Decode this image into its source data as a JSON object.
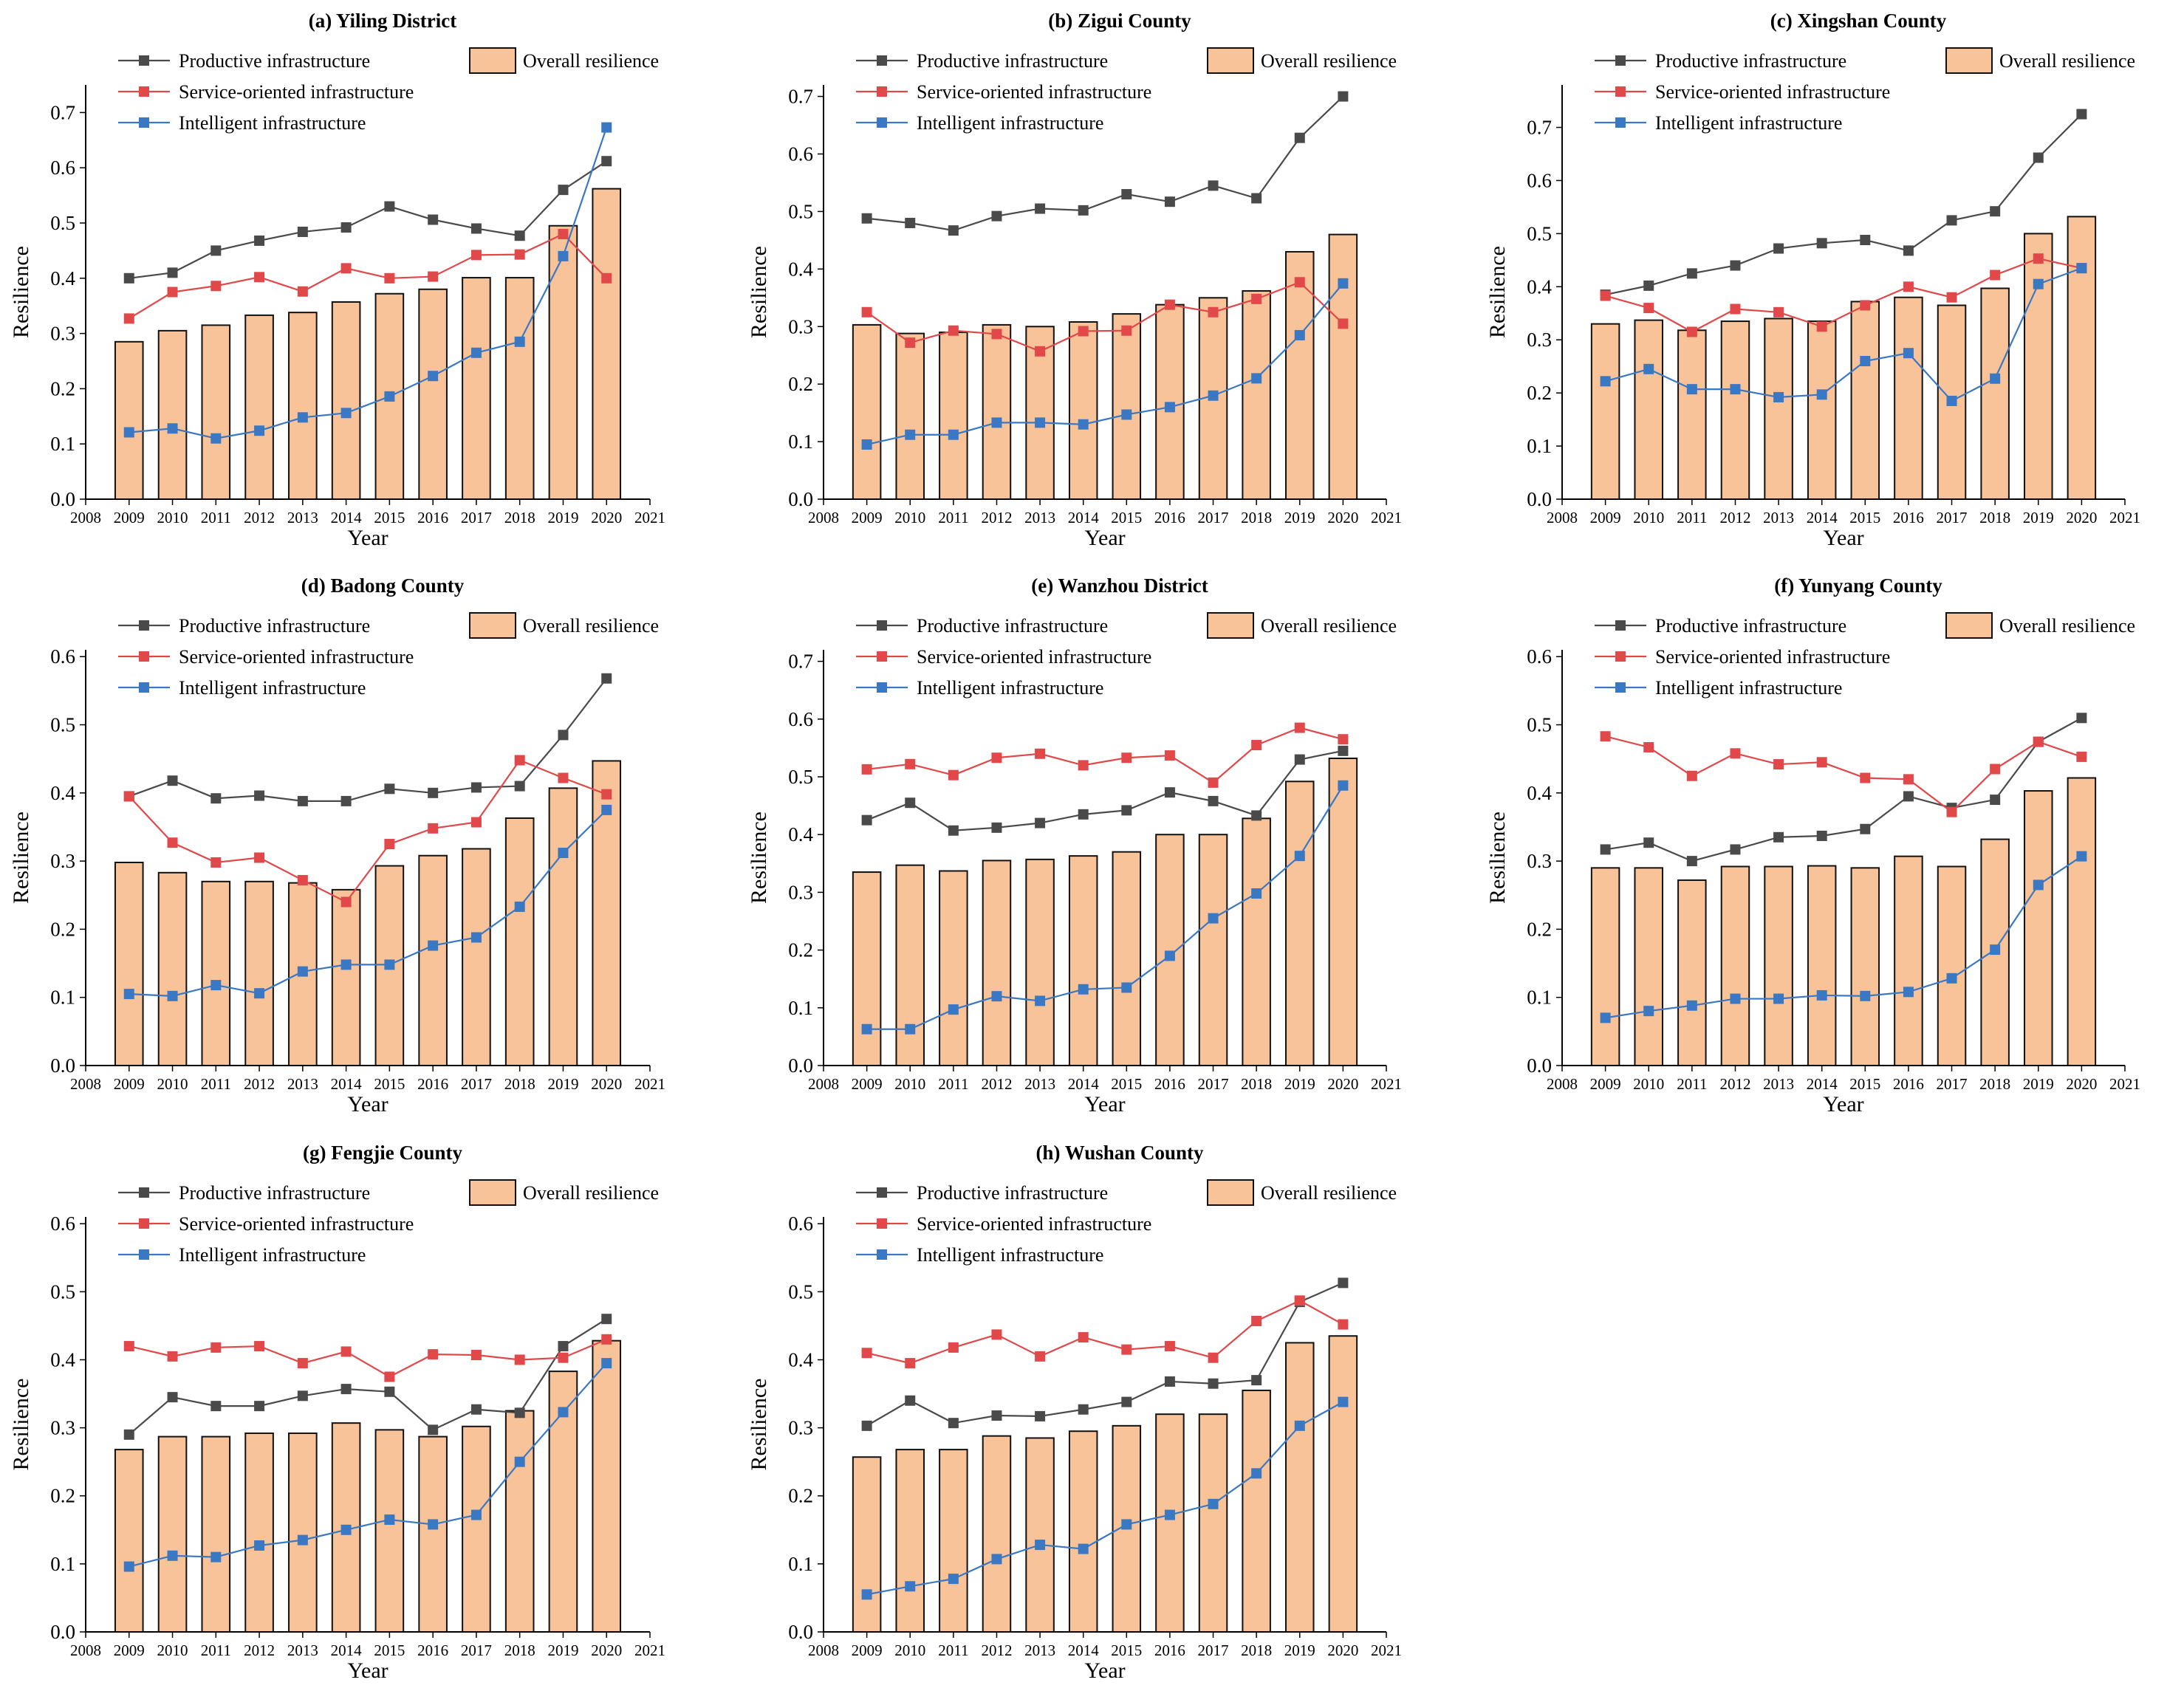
{
  "figure": {
    "series_names": [
      "Productive infrastructure",
      "Service-oriented infrastructure",
      "Intelligent infrastructure"
    ],
    "bar_name": "Overall resilience",
    "colors": {
      "productive": "#4a4a4a",
      "service": "#e0484a",
      "intelligent": "#3a78c4",
      "bar_fill": "#f9c39a",
      "bar_edge": "#111111"
    }
  },
  "chart_data": [
    {
      "type": "bar",
      "title": "(a) Yiling District",
      "xlabel": "Year",
      "ylabel": "Resilience",
      "x_ticks": [
        "2008",
        "2009",
        "2010",
        "2011",
        "2012",
        "2013",
        "2014",
        "2015",
        "2016",
        "2017",
        "2018",
        "2019",
        "2020",
        "2021"
      ],
      "y_ticks": [
        "0.0",
        "0.1",
        "0.2",
        "0.3",
        "0.4",
        "0.5",
        "0.6",
        "0.7"
      ],
      "categories": [
        2009,
        2010,
        2011,
        2012,
        2013,
        2014,
        2015,
        2016,
        2017,
        2018,
        2019,
        2020
      ],
      "xlim": [
        2008,
        2021
      ],
      "ylim": [
        0,
        0.75
      ],
      "legend": "top-left",
      "series": [
        {
          "name": "Overall resilience",
          "kind": "bar",
          "values": [
            0.285,
            0.305,
            0.315,
            0.333,
            0.338,
            0.357,
            0.372,
            0.38,
            0.401,
            0.401,
            0.495,
            0.562
          ]
        },
        {
          "name": "Productive infrastructure",
          "kind": "line",
          "values": [
            0.4,
            0.41,
            0.45,
            0.468,
            0.484,
            0.492,
            0.53,
            0.506,
            0.49,
            0.477,
            0.56,
            0.612
          ]
        },
        {
          "name": "Service-oriented infrastructure",
          "kind": "line",
          "values": [
            0.327,
            0.375,
            0.386,
            0.402,
            0.376,
            0.418,
            0.4,
            0.403,
            0.442,
            0.443,
            0.48,
            0.4
          ]
        },
        {
          "name": "Intelligent infrastructure",
          "kind": "line",
          "values": [
            0.121,
            0.128,
            0.11,
            0.124,
            0.148,
            0.156,
            0.186,
            0.223,
            0.265,
            0.285,
            0.44,
            0.673
          ]
        }
      ]
    },
    {
      "type": "bar",
      "title": "(b) Zigui County",
      "xlabel": "Year",
      "ylabel": "Resilience",
      "x_ticks": [
        "2008",
        "2009",
        "2010",
        "2011",
        "2012",
        "2013",
        "2014",
        "2015",
        "2016",
        "2017",
        "2018",
        "2019",
        "2020",
        "2021"
      ],
      "y_ticks": [
        "0.0",
        "0.1",
        "0.2",
        "0.3",
        "0.4",
        "0.5",
        "0.6",
        "0.7"
      ],
      "categories": [
        2009,
        2010,
        2011,
        2012,
        2013,
        2014,
        2015,
        2016,
        2017,
        2018,
        2019,
        2020
      ],
      "xlim": [
        2008,
        2021
      ],
      "ylim": [
        0,
        0.72
      ],
      "legend": "top-left",
      "series": [
        {
          "name": "Overall resilience",
          "kind": "bar",
          "values": [
            0.303,
            0.288,
            0.29,
            0.303,
            0.3,
            0.308,
            0.322,
            0.338,
            0.35,
            0.362,
            0.43,
            0.46
          ]
        },
        {
          "name": "Productive infrastructure",
          "kind": "line",
          "values": [
            0.488,
            0.48,
            0.467,
            0.492,
            0.505,
            0.502,
            0.53,
            0.517,
            0.545,
            0.523,
            0.628,
            0.7
          ]
        },
        {
          "name": "Service-oriented infrastructure",
          "kind": "line",
          "values": [
            0.325,
            0.272,
            0.293,
            0.287,
            0.257,
            0.292,
            0.293,
            0.338,
            0.325,
            0.348,
            0.377,
            0.305
          ]
        },
        {
          "name": "Intelligent infrastructure",
          "kind": "line",
          "values": [
            0.095,
            0.112,
            0.112,
            0.133,
            0.133,
            0.13,
            0.147,
            0.16,
            0.18,
            0.21,
            0.285,
            0.375
          ]
        }
      ]
    },
    {
      "type": "bar",
      "title": "(c) Xingshan County",
      "xlabel": "Year",
      "ylabel": "Resilience",
      "x_ticks": [
        "2008",
        "2009",
        "2010",
        "2011",
        "2012",
        "2013",
        "2014",
        "2015",
        "2016",
        "2017",
        "2018",
        "2019",
        "2020",
        "2021"
      ],
      "y_ticks": [
        "0.0",
        "0.1",
        "0.2",
        "0.3",
        "0.4",
        "0.5",
        "0.6",
        "0.7"
      ],
      "categories": [
        2009,
        2010,
        2011,
        2012,
        2013,
        2014,
        2015,
        2016,
        2017,
        2018,
        2019,
        2020
      ],
      "xlim": [
        2008,
        2021
      ],
      "ylim": [
        0,
        0.78
      ],
      "legend": "top-left",
      "series": [
        {
          "name": "Overall resilience",
          "kind": "bar",
          "values": [
            0.33,
            0.337,
            0.318,
            0.335,
            0.34,
            0.335,
            0.372,
            0.38,
            0.365,
            0.397,
            0.5,
            0.532
          ]
        },
        {
          "name": "Productive infrastructure",
          "kind": "line",
          "values": [
            0.385,
            0.402,
            0.425,
            0.44,
            0.472,
            0.482,
            0.488,
            0.468,
            0.525,
            0.542,
            0.643,
            0.725
          ]
        },
        {
          "name": "Service-oriented infrastructure",
          "kind": "line",
          "values": [
            0.383,
            0.36,
            0.315,
            0.358,
            0.352,
            0.325,
            0.365,
            0.4,
            0.38,
            0.422,
            0.453,
            0.435
          ]
        },
        {
          "name": "Intelligent infrastructure",
          "kind": "line",
          "values": [
            0.222,
            0.245,
            0.207,
            0.207,
            0.192,
            0.197,
            0.26,
            0.275,
            0.185,
            0.227,
            0.405,
            0.435
          ]
        }
      ]
    },
    {
      "type": "bar",
      "title": "(d) Badong County",
      "xlabel": "Year",
      "ylabel": "Resilience",
      "x_ticks": [
        "2008",
        "2009",
        "2010",
        "2011",
        "2012",
        "2013",
        "2014",
        "2015",
        "2016",
        "2017",
        "2018",
        "2019",
        "2020",
        "2021"
      ],
      "y_ticks": [
        "0.0",
        "0.1",
        "0.2",
        "0.3",
        "0.4",
        "0.5",
        "0.6"
      ],
      "categories": [
        2009,
        2010,
        2011,
        2012,
        2013,
        2014,
        2015,
        2016,
        2017,
        2018,
        2019,
        2020
      ],
      "xlim": [
        2008,
        2021
      ],
      "ylim": [
        0,
        0.61
      ],
      "legend": "top-left",
      "series": [
        {
          "name": "Overall resilience",
          "kind": "bar",
          "values": [
            0.298,
            0.283,
            0.27,
            0.27,
            0.268,
            0.258,
            0.293,
            0.308,
            0.318,
            0.363,
            0.407,
            0.447
          ]
        },
        {
          "name": "Productive infrastructure",
          "kind": "line",
          "values": [
            0.395,
            0.418,
            0.392,
            0.396,
            0.388,
            0.388,
            0.406,
            0.4,
            0.408,
            0.41,
            0.485,
            0.568
          ]
        },
        {
          "name": "Service-oriented infrastructure",
          "kind": "line",
          "values": [
            0.395,
            0.327,
            0.298,
            0.305,
            0.272,
            0.24,
            0.325,
            0.348,
            0.357,
            0.448,
            0.422,
            0.398
          ]
        },
        {
          "name": "Intelligent infrastructure",
          "kind": "line",
          "values": [
            0.105,
            0.102,
            0.118,
            0.106,
            0.138,
            0.148,
            0.148,
            0.176,
            0.188,
            0.233,
            0.312,
            0.375
          ]
        }
      ]
    },
    {
      "type": "bar",
      "title": "(e) Wanzhou District",
      "xlabel": "Year",
      "ylabel": "Resilience",
      "x_ticks": [
        "2008",
        "2009",
        "2010",
        "2011",
        "2012",
        "2013",
        "2014",
        "2015",
        "2016",
        "2017",
        "2018",
        "2019",
        "2020",
        "2021"
      ],
      "y_ticks": [
        "0.0",
        "0.1",
        "0.2",
        "0.3",
        "0.4",
        "0.5",
        "0.6",
        "0.7"
      ],
      "categories": [
        2009,
        2010,
        2011,
        2012,
        2013,
        2014,
        2015,
        2016,
        2017,
        2018,
        2019,
        2020
      ],
      "xlim": [
        2008,
        2021
      ],
      "ylim": [
        0,
        0.72
      ],
      "legend": "top-left",
      "series": [
        {
          "name": "Overall resilience",
          "kind": "bar",
          "values": [
            0.335,
            0.347,
            0.337,
            0.355,
            0.357,
            0.363,
            0.37,
            0.4,
            0.4,
            0.428,
            0.492,
            0.532
          ]
        },
        {
          "name": "Productive infrastructure",
          "kind": "line",
          "values": [
            0.425,
            0.455,
            0.407,
            0.412,
            0.42,
            0.435,
            0.442,
            0.473,
            0.458,
            0.433,
            0.53,
            0.545
          ]
        },
        {
          "name": "Service-oriented infrastructure",
          "kind": "line",
          "values": [
            0.513,
            0.522,
            0.503,
            0.533,
            0.54,
            0.52,
            0.533,
            0.537,
            0.49,
            0.555,
            0.585,
            0.565
          ]
        },
        {
          "name": "Intelligent infrastructure",
          "kind": "line",
          "values": [
            0.063,
            0.063,
            0.097,
            0.12,
            0.112,
            0.132,
            0.135,
            0.19,
            0.255,
            0.298,
            0.363,
            0.485
          ]
        }
      ]
    },
    {
      "type": "bar",
      "title": "(f) Yunyang County",
      "xlabel": "Year",
      "ylabel": "Resilience",
      "x_ticks": [
        "2008",
        "2009",
        "2010",
        "2011",
        "2012",
        "2013",
        "2014",
        "2015",
        "2016",
        "2017",
        "2018",
        "2019",
        "2020",
        "2021"
      ],
      "y_ticks": [
        "0.0",
        "0.1",
        "0.2",
        "0.3",
        "0.4",
        "0.5",
        "0.6"
      ],
      "categories": [
        2009,
        2010,
        2011,
        2012,
        2013,
        2014,
        2015,
        2016,
        2017,
        2018,
        2019,
        2020
      ],
      "xlim": [
        2008,
        2021
      ],
      "ylim": [
        0,
        0.61
      ],
      "legend": "top-left",
      "series": [
        {
          "name": "Overall resilience",
          "kind": "bar",
          "values": [
            0.29,
            0.29,
            0.272,
            0.292,
            0.292,
            0.293,
            0.29,
            0.307,
            0.292,
            0.332,
            0.403,
            0.422
          ]
        },
        {
          "name": "Productive infrastructure",
          "kind": "line",
          "values": [
            0.317,
            0.327,
            0.3,
            0.317,
            0.335,
            0.337,
            0.347,
            0.395,
            0.378,
            0.39,
            0.475,
            0.51
          ]
        },
        {
          "name": "Service-oriented infrastructure",
          "kind": "line",
          "values": [
            0.483,
            0.467,
            0.425,
            0.458,
            0.442,
            0.445,
            0.422,
            0.42,
            0.372,
            0.435,
            0.475,
            0.453
          ]
        },
        {
          "name": "Intelligent infrastructure",
          "kind": "line",
          "values": [
            0.07,
            0.08,
            0.088,
            0.098,
            0.098,
            0.103,
            0.102,
            0.108,
            0.128,
            0.17,
            0.265,
            0.307
          ]
        }
      ]
    },
    {
      "type": "bar",
      "title": "(g) Fengjie County",
      "xlabel": "Year",
      "ylabel": "Resilience",
      "x_ticks": [
        "2008",
        "2009",
        "2010",
        "2011",
        "2012",
        "2013",
        "2014",
        "2015",
        "2016",
        "2017",
        "2018",
        "2019",
        "2020",
        "2021"
      ],
      "y_ticks": [
        "0.0",
        "0.1",
        "0.2",
        "0.3",
        "0.4",
        "0.5",
        "0.6"
      ],
      "categories": [
        2009,
        2010,
        2011,
        2012,
        2013,
        2014,
        2015,
        2016,
        2017,
        2018,
        2019,
        2020
      ],
      "xlim": [
        2008,
        2021
      ],
      "ylim": [
        0,
        0.61
      ],
      "legend": "top-left",
      "series": [
        {
          "name": "Overall resilience",
          "kind": "bar",
          "values": [
            0.268,
            0.287,
            0.287,
            0.292,
            0.292,
            0.307,
            0.297,
            0.287,
            0.302,
            0.325,
            0.383,
            0.428
          ]
        },
        {
          "name": "Productive infrastructure",
          "kind": "line",
          "values": [
            0.29,
            0.345,
            0.332,
            0.332,
            0.347,
            0.357,
            0.353,
            0.297,
            0.327,
            0.322,
            0.42,
            0.46
          ]
        },
        {
          "name": "Service-oriented infrastructure",
          "kind": "line",
          "values": [
            0.42,
            0.405,
            0.418,
            0.42,
            0.395,
            0.412,
            0.375,
            0.408,
            0.407,
            0.4,
            0.403,
            0.43
          ]
        },
        {
          "name": "Intelligent infrastructure",
          "kind": "line",
          "values": [
            0.096,
            0.112,
            0.11,
            0.127,
            0.135,
            0.15,
            0.165,
            0.158,
            0.172,
            0.25,
            0.323,
            0.395
          ]
        }
      ]
    },
    {
      "type": "bar",
      "title": "(h) Wushan County",
      "xlabel": "Year",
      "ylabel": "Resilience",
      "x_ticks": [
        "2008",
        "2009",
        "2010",
        "2011",
        "2012",
        "2013",
        "2014",
        "2015",
        "2016",
        "2017",
        "2018",
        "2019",
        "2020",
        "2021"
      ],
      "y_ticks": [
        "0.0",
        "0.1",
        "0.2",
        "0.3",
        "0.4",
        "0.5",
        "0.6"
      ],
      "categories": [
        2009,
        2010,
        2011,
        2012,
        2013,
        2014,
        2015,
        2016,
        2017,
        2018,
        2019,
        2020
      ],
      "xlim": [
        2008,
        2021
      ],
      "ylim": [
        0,
        0.61
      ],
      "legend": "top-left",
      "series": [
        {
          "name": "Overall resilience",
          "kind": "bar",
          "values": [
            0.257,
            0.268,
            0.268,
            0.288,
            0.285,
            0.295,
            0.303,
            0.32,
            0.32,
            0.355,
            0.425,
            0.435
          ]
        },
        {
          "name": "Productive infrastructure",
          "kind": "line",
          "values": [
            0.303,
            0.34,
            0.307,
            0.318,
            0.317,
            0.327,
            0.338,
            0.368,
            0.365,
            0.37,
            0.485,
            0.513
          ]
        },
        {
          "name": "Service-oriented infrastructure",
          "kind": "line",
          "values": [
            0.41,
            0.395,
            0.418,
            0.437,
            0.405,
            0.433,
            0.415,
            0.42,
            0.403,
            0.457,
            0.487,
            0.452
          ]
        },
        {
          "name": "Intelligent infrastructure",
          "kind": "line",
          "values": [
            0.055,
            0.067,
            0.078,
            0.107,
            0.128,
            0.122,
            0.158,
            0.172,
            0.188,
            0.233,
            0.303,
            0.338
          ]
        }
      ]
    }
  ]
}
